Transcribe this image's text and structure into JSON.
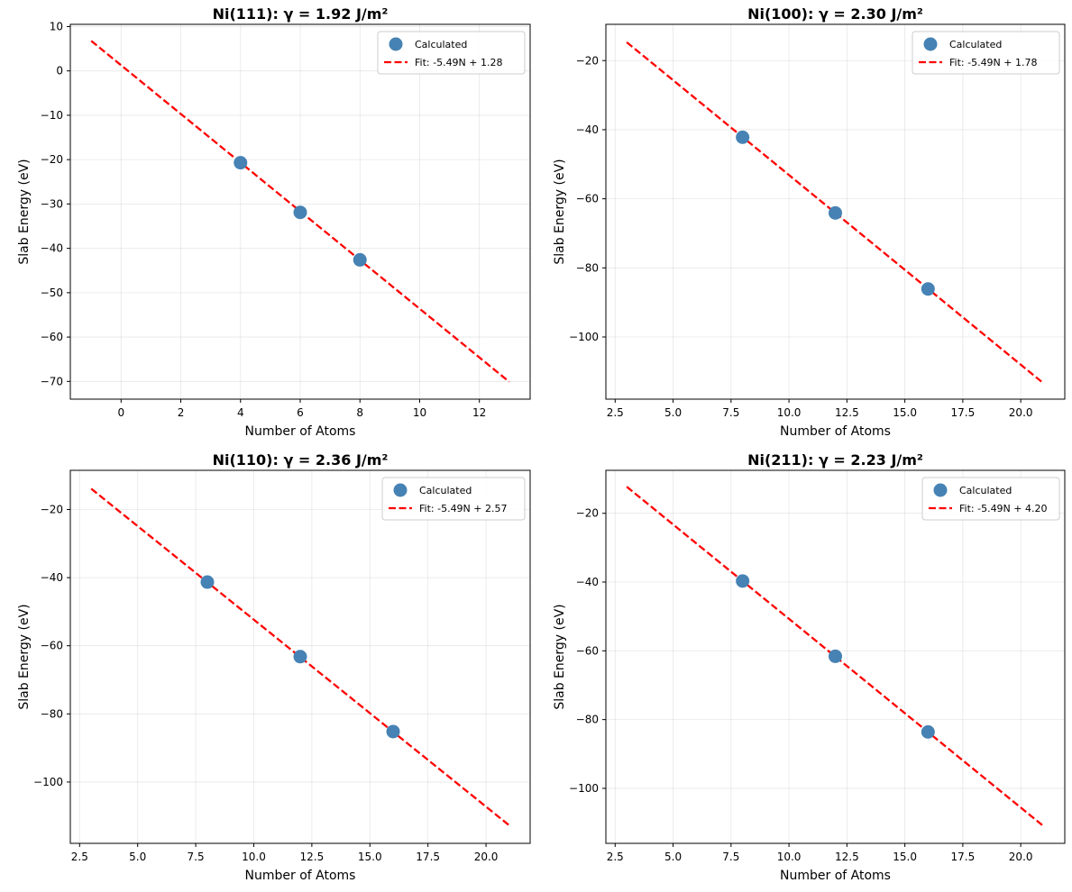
{
  "chart_data": [
    {
      "type": "scatter",
      "title": "Ni(111): γ = 1.92 J/m²",
      "xlabel": "Number of Atoms",
      "ylabel": "Slab Energy (eV)",
      "xlim": [
        -1.7,
        13.7
      ],
      "ylim": [
        -74,
        10.5
      ],
      "xticks": [
        0,
        2,
        4,
        6,
        8,
        10,
        12
      ],
      "yticks": [
        10,
        0,
        -10,
        -20,
        -30,
        -40,
        -50,
        -60,
        -70
      ],
      "xtick_labels": [
        "0",
        "2",
        "4",
        "6",
        "8",
        "10",
        "12"
      ],
      "ytick_labels": [
        "10",
        "0",
        "−10",
        "−20",
        "−30",
        "−40",
        "−50",
        "−60",
        "−70"
      ],
      "grid": true,
      "legend_position": "top-right",
      "series": [
        {
          "name": "Calculated",
          "kind": "scatter",
          "color": "#4682b4",
          "x": [
            4,
            6,
            8
          ],
          "y": [
            -20.7,
            -31.9,
            -42.6
          ]
        },
        {
          "name": "Fit: -5.49N + 1.28",
          "kind": "line",
          "color": "#ff0000",
          "dash": true,
          "x": [
            -1,
            13
          ],
          "y": [
            6.77,
            -70.09
          ]
        }
      ]
    },
    {
      "type": "scatter",
      "title": "Ni(100): γ = 2.30 J/m²",
      "xlabel": "Number of Atoms",
      "ylabel": "Slab Energy (eV)",
      "xlim": [
        2.1,
        21.9
      ],
      "ylim": [
        -118,
        -9.5
      ],
      "xticks": [
        2.5,
        5,
        7.5,
        10,
        12.5,
        15,
        17.5,
        20
      ],
      "yticks": [
        -20,
        -40,
        -60,
        -80,
        -100
      ],
      "xtick_labels": [
        "2.5",
        "5.0",
        "7.5",
        "10.0",
        "12.5",
        "15.0",
        "17.5",
        "20.0"
      ],
      "ytick_labels": [
        "−20",
        "−40",
        "−60",
        "−80",
        "−100"
      ],
      "grid": true,
      "legend_position": "top-right",
      "series": [
        {
          "name": "Calculated",
          "kind": "scatter",
          "color": "#4682b4",
          "x": [
            8,
            12,
            16
          ],
          "y": [
            -42.2,
            -64.1,
            -86.1
          ]
        },
        {
          "name": "Fit: -5.49N + 1.78",
          "kind": "line",
          "color": "#ff0000",
          "dash": true,
          "x": [
            3,
            21
          ],
          "y": [
            -14.69,
            -113.51
          ]
        }
      ]
    },
    {
      "type": "scatter",
      "title": "Ni(110): γ = 2.36 J/m²",
      "xlabel": "Number of Atoms",
      "ylabel": "Slab Energy (eV)",
      "xlim": [
        2.1,
        21.9
      ],
      "ylim": [
        -118,
        -8.5
      ],
      "xticks": [
        2.5,
        5,
        7.5,
        10,
        12.5,
        15,
        17.5,
        20
      ],
      "yticks": [
        -20,
        -40,
        -60,
        -80,
        -100
      ],
      "xtick_labels": [
        "2.5",
        "5.0",
        "7.5",
        "10.0",
        "12.5",
        "15.0",
        "17.5",
        "20.0"
      ],
      "ytick_labels": [
        "−20",
        "−40",
        "−60",
        "−80",
        "−100"
      ],
      "grid": true,
      "legend_position": "top-right",
      "series": [
        {
          "name": "Calculated",
          "kind": "scatter",
          "color": "#4682b4",
          "x": [
            8,
            12,
            16
          ],
          "y": [
            -41.3,
            -63.2,
            -85.2
          ]
        },
        {
          "name": "Fit: -5.49N + 2.57",
          "kind": "line",
          "color": "#ff0000",
          "dash": true,
          "x": [
            3,
            21
          ],
          "y": [
            -13.9,
            -112.72
          ]
        }
      ]
    },
    {
      "type": "scatter",
      "title": "Ni(211): γ = 2.23 J/m²",
      "xlabel": "Number of Atoms",
      "ylabel": "Slab Energy (eV)",
      "xlim": [
        2.1,
        21.9
      ],
      "ylim": [
        -116,
        -7.5
      ],
      "xticks": [
        2.5,
        5,
        7.5,
        10,
        12.5,
        15,
        17.5,
        20
      ],
      "yticks": [
        -20,
        -40,
        -60,
        -80,
        -100
      ],
      "xtick_labels": [
        "2.5",
        "5.0",
        "7.5",
        "10.0",
        "12.5",
        "15.0",
        "17.5",
        "20.0"
      ],
      "ytick_labels": [
        "−20",
        "−40",
        "−60",
        "−80",
        "−100"
      ],
      "grid": true,
      "legend_position": "top-right",
      "series": [
        {
          "name": "Calculated",
          "kind": "scatter",
          "color": "#4682b4",
          "x": [
            8,
            12,
            16
          ],
          "y": [
            -39.7,
            -61.6,
            -83.6
          ]
        },
        {
          "name": "Fit: -5.49N + 4.20",
          "kind": "line",
          "color": "#ff0000",
          "dash": true,
          "x": [
            3,
            21
          ],
          "y": [
            -12.27,
            -111.09
          ]
        }
      ]
    }
  ]
}
